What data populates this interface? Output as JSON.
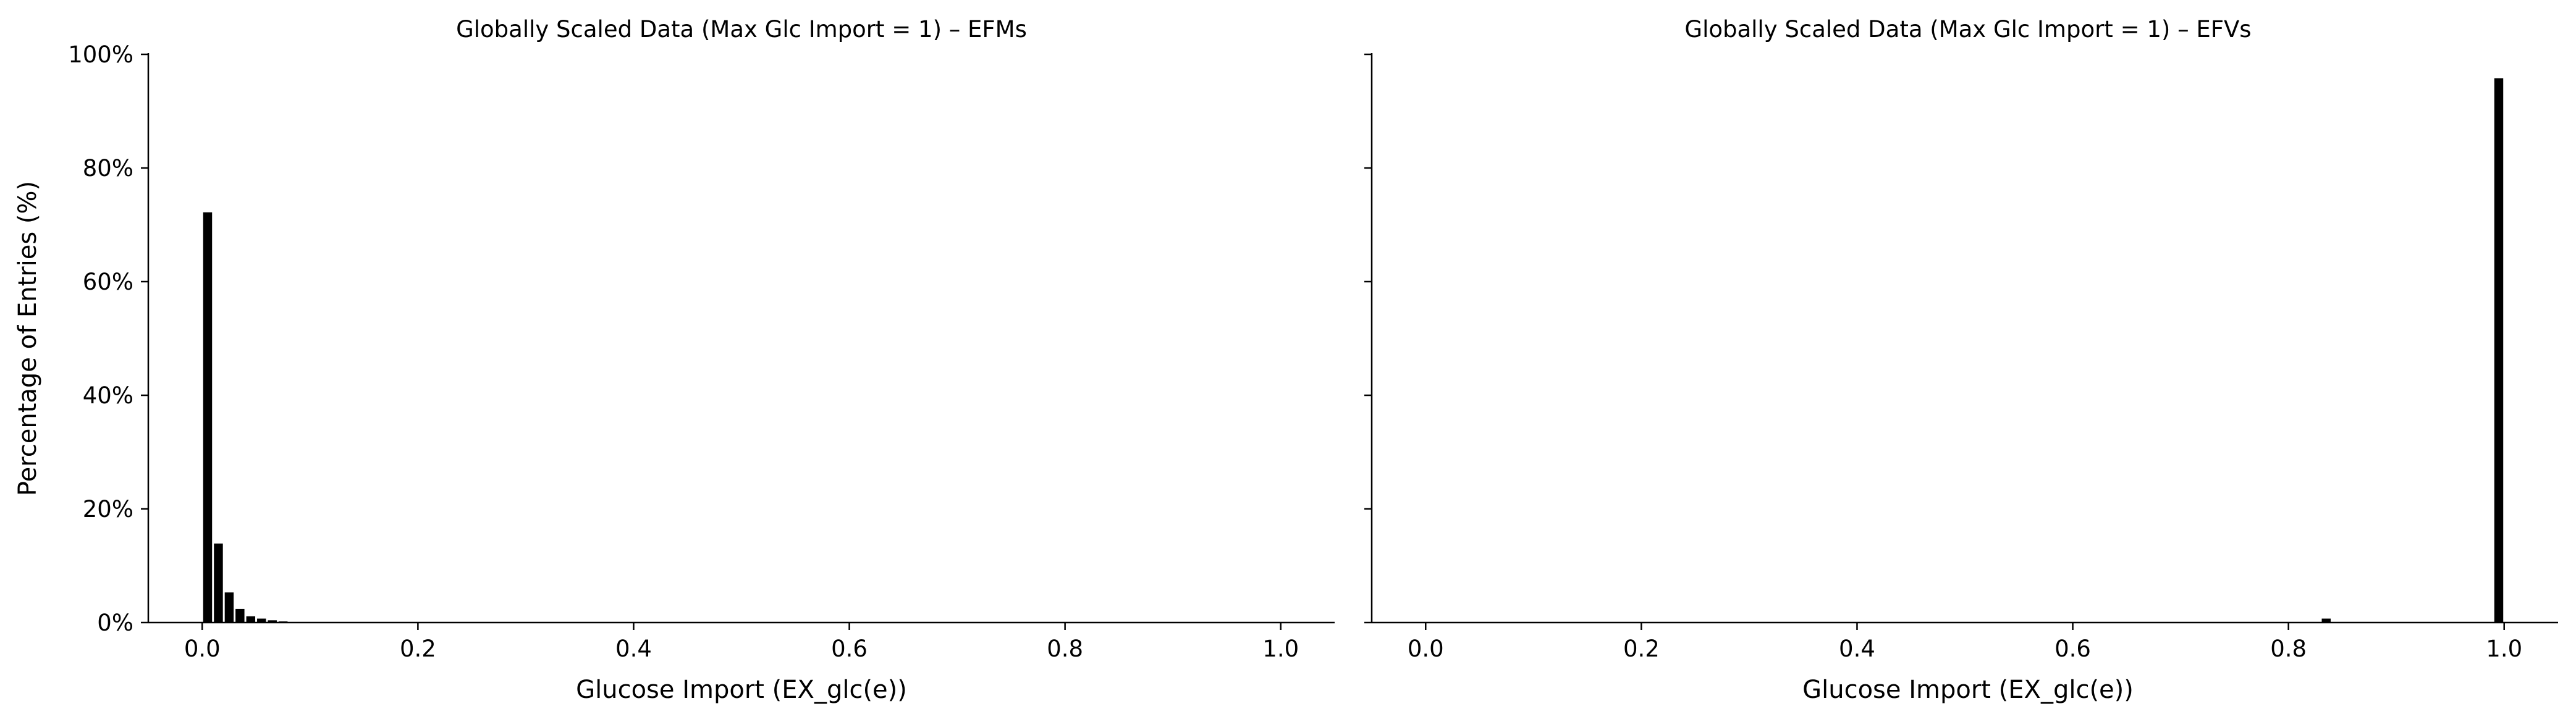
{
  "chart_data": [
    {
      "type": "bar",
      "title": "Globally Scaled Data (Max Glc Import = 1) – EFMs",
      "xlabel": "Glucose Import (EX_glc(e))",
      "ylabel": "Percentage of Entries (%)",
      "xlim": [
        -0.05,
        1.05
      ],
      "ylim": [
        0,
        100
      ],
      "xticks": [
        0.0,
        0.2,
        0.4,
        0.6,
        0.8,
        1.0
      ],
      "xtick_labels": [
        "0.0",
        "0.2",
        "0.4",
        "0.6",
        "0.8",
        "1.0"
      ],
      "yticks": [
        0,
        20,
        40,
        60,
        80,
        100
      ],
      "ytick_labels": [
        "0%",
        "20%",
        "40%",
        "60%",
        "80%",
        "100%"
      ],
      "bin_width": 0.01,
      "x": [
        0.005,
        0.015,
        0.025,
        0.035,
        0.045,
        0.055,
        0.065,
        0.075
      ],
      "values": [
        72.2,
        13.9,
        5.3,
        2.4,
        1.1,
        0.7,
        0.4,
        0.2
      ],
      "bar_color": "#000000",
      "grid": false,
      "show_ylabel": true
    },
    {
      "type": "bar",
      "title": "Globally Scaled Data (Max Glc Import = 1) – EFVs",
      "xlabel": "Glucose Import (EX_glc(e))",
      "ylabel": "",
      "xlim": [
        -0.05,
        1.05
      ],
      "ylim": [
        0,
        100
      ],
      "xticks": [
        0.0,
        0.2,
        0.4,
        0.6,
        0.8,
        1.0
      ],
      "xtick_labels": [
        "0.0",
        "0.2",
        "0.4",
        "0.6",
        "0.8",
        "1.0"
      ],
      "yticks": [
        0,
        20,
        40,
        60,
        80,
        100
      ],
      "ytick_labels": [
        "",
        "",
        "",
        "",
        "",
        ""
      ],
      "bin_width": 0.01,
      "x": [
        0.835,
        0.995
      ],
      "values": [
        0.7,
        95.8
      ],
      "bar_color": "#000000",
      "grid": false,
      "show_ylabel": false
    }
  ]
}
